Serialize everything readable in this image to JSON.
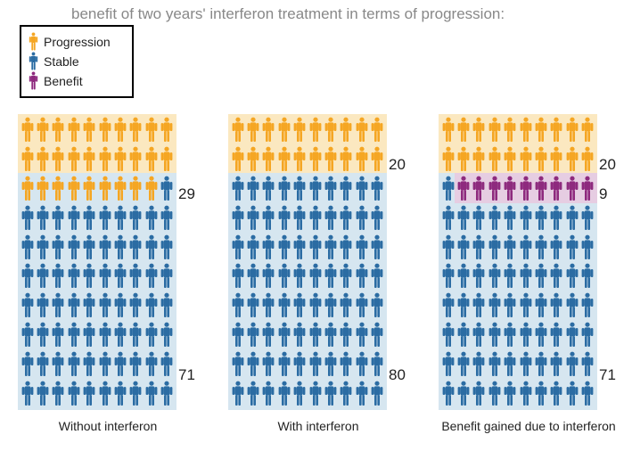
{
  "title": "benefit of two years' interferon treatment in terms of progression:",
  "colors": {
    "progression": "#f5a623",
    "stable": "#2b6ca3",
    "benefit": "#8e2a7e",
    "hl_progression": "#fbe8c0",
    "hl_stable": "#d6e6f0",
    "hl_benefit": "#e6cde2",
    "text": "#222222",
    "title_color": "#888888"
  },
  "legend": [
    {
      "label": "Progression",
      "category": "progression"
    },
    {
      "label": "Stable",
      "category": "stable"
    },
    {
      "label": "Benefit",
      "category": "benefit"
    }
  ],
  "grid": {
    "cols": 10,
    "rows": 10,
    "cell_h": 33.2
  },
  "panels": [
    {
      "id": "without",
      "caption": "Without interferon",
      "labels": [
        {
          "value": 29,
          "row": 2.9
        },
        {
          "value": 71,
          "row": 9.0
        }
      ],
      "highlights": [
        {
          "category": "progression",
          "row_from": 0,
          "row_to": 2,
          "col_from": 0,
          "col_to": 10
        },
        {
          "category": "stable",
          "row_from": 2,
          "row_to": 10,
          "col_from": 0,
          "col_to": 10
        }
      ],
      "figures": {
        "type": "counts",
        "segments": [
          {
            "category": "progression",
            "count": 29
          },
          {
            "category": "stable",
            "count": 71
          }
        ]
      }
    },
    {
      "id": "with",
      "caption": "With interferon",
      "labels": [
        {
          "value": 20,
          "row": 1.9
        },
        {
          "value": 80,
          "row": 9.0
        }
      ],
      "highlights": [
        {
          "category": "progression",
          "row_from": 0,
          "row_to": 2,
          "col_from": 0,
          "col_to": 10
        },
        {
          "category": "stable",
          "row_from": 2,
          "row_to": 10,
          "col_from": 0,
          "col_to": 10
        }
      ],
      "figures": {
        "type": "counts",
        "segments": [
          {
            "category": "progression",
            "count": 20
          },
          {
            "category": "stable",
            "count": 80
          }
        ]
      }
    },
    {
      "id": "benefit",
      "caption": "Benefit gained due to interferon",
      "labels": [
        {
          "value": 20,
          "row": 1.9
        },
        {
          "value": 9,
          "row": 2.9
        },
        {
          "value": 71,
          "row": 9.0
        }
      ],
      "highlights": [
        {
          "category": "progression",
          "row_from": 0,
          "row_to": 2,
          "col_from": 0,
          "col_to": 10
        },
        {
          "category": "stable",
          "row_from": 2,
          "row_to": 10,
          "col_from": 0,
          "col_to": 10
        },
        {
          "category": "benefit",
          "row_from": 2,
          "row_to": 3,
          "col_from": 1,
          "col_to": 10
        }
      ],
      "figures": {
        "type": "counts",
        "segments": [
          {
            "category": "progression",
            "count": 20
          },
          {
            "category": "stable",
            "count": 1
          },
          {
            "category": "benefit",
            "count": 9
          },
          {
            "category": "stable",
            "count": 70
          }
        ]
      }
    }
  ]
}
